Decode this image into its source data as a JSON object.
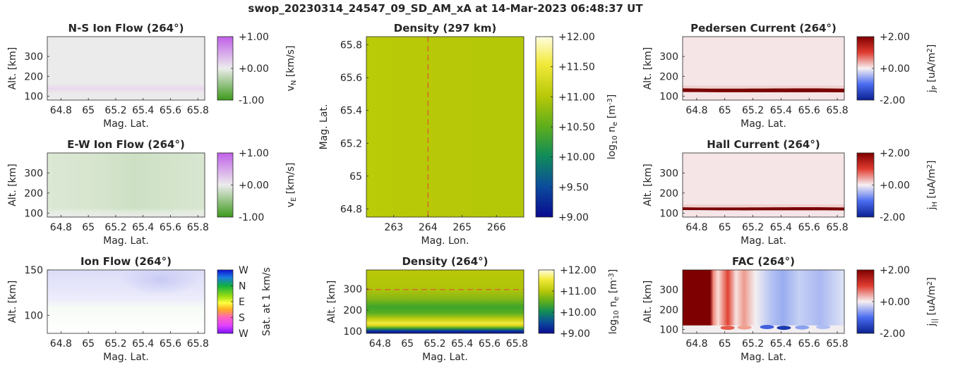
{
  "suptitle": "swop_20230314_24547_09_SD_AM_xA at 14-Mar-2023 06:48:37 UT",
  "colors": {
    "density_field": "#b9c907",
    "current_bg": "#f5e5e7",
    "current_band": "#7a0000",
    "flow_ns": "#e5dde8",
    "flow_ew": "#d4e4cc"
  },
  "chart_data": [
    {
      "id": "ns-flow",
      "type": "heatmap",
      "title": "N-S Ion Flow (264°)",
      "xlabel": "Mag. Lat.",
      "ylabel": "Alt. [km]",
      "xticks": [
        "64.8",
        "65",
        "65.2",
        "65.4",
        "65.6",
        "65.8"
      ],
      "yticks": [
        "100",
        "200",
        "300"
      ],
      "xlim": [
        64.7,
        65.85
      ],
      "ylim": [
        80,
        400
      ],
      "colorbar": {
        "label": "v_N [km/s]",
        "ticks": [
          "+1.00",
          "+0.00",
          "-1.00"
        ],
        "range": [
          -1,
          1
        ],
        "scheme": "purple-green"
      }
    },
    {
      "id": "ew-flow",
      "type": "heatmap",
      "title": "E-W Ion Flow (264°)",
      "xlabel": "Mag. Lat.",
      "ylabel": "Alt. [km]",
      "xticks": [
        "64.8",
        "65",
        "65.2",
        "65.4",
        "65.6",
        "65.8"
      ],
      "yticks": [
        "100",
        "200",
        "300"
      ],
      "xlim": [
        64.7,
        65.85
      ],
      "ylim": [
        80,
        400
      ],
      "colorbar": {
        "label": "v_E [km/s]",
        "ticks": [
          "+1.00",
          "+0.00",
          "-1.00"
        ],
        "range": [
          -1,
          1
        ],
        "scheme": "purple-green"
      }
    },
    {
      "id": "ion-flow",
      "type": "heatmap",
      "title": "Ion Flow (264°)",
      "xlabel": "Mag. Lat.",
      "ylabel": "Alt. [km]",
      "xticks": [
        "64.8",
        "65",
        "65.2",
        "65.4",
        "65.6",
        "65.8"
      ],
      "yticks": [
        "100",
        "150"
      ],
      "xlim": [
        64.7,
        65.85
      ],
      "ylim": [
        80,
        150
      ],
      "colorbar": {
        "label": "Sat. at 1 km/s",
        "ticks": [
          "W",
          "N",
          "E",
          "S",
          "W"
        ],
        "scheme": "direction"
      }
    },
    {
      "id": "density-map",
      "type": "heatmap",
      "title": "Density (297 km)",
      "xlabel": "Mag. Lon.",
      "ylabel": "Mag. Lat.",
      "xticks": [
        "263",
        "264",
        "265",
        "266"
      ],
      "yticks": [
        "64.8",
        "65",
        "65.2",
        "65.4",
        "65.6",
        "65.8"
      ],
      "xlim": [
        262.2,
        266.8
      ],
      "ylim": [
        64.75,
        65.85
      ],
      "marker_line": {
        "x": 264
      },
      "colorbar": {
        "label": "log10 n_e [m^-3]",
        "ticks": [
          "+12.00",
          "+11.50",
          "+11.00",
          "+10.50",
          "+10.00",
          "+9.50",
          "+9.00"
        ],
        "range": [
          9,
          12
        ],
        "scheme": "density"
      }
    },
    {
      "id": "density-profile",
      "type": "heatmap",
      "title": "Density (264°)",
      "xlabel": "Mag. Lat.",
      "ylabel": "Alt. [km]",
      "xticks": [
        "64.8",
        "65",
        "65.2",
        "65.4",
        "65.6",
        "65.8"
      ],
      "yticks": [
        "100",
        "200",
        "300"
      ],
      "xlim": [
        64.7,
        65.85
      ],
      "ylim": [
        90,
        390
      ],
      "marker_line": {
        "y": 297
      },
      "colorbar": {
        "label": "log10 n_e [m^-3]",
        "ticks": [
          "+12.00",
          "+11.00",
          "+10.00",
          "+9.00"
        ],
        "range": [
          9,
          12
        ],
        "scheme": "density"
      }
    },
    {
      "id": "pedersen",
      "type": "heatmap",
      "title": "Pedersen Current (264°)",
      "xlabel": "Mag. Lat.",
      "ylabel": "Alt. [km]",
      "xticks": [
        "64.8",
        "65",
        "65.2",
        "65.4",
        "65.6",
        "65.8"
      ],
      "yticks": [
        "100",
        "200",
        "300"
      ],
      "xlim": [
        64.7,
        65.85
      ],
      "ylim": [
        80,
        400
      ],
      "colorbar": {
        "label": "j_P [uA/m^2]",
        "ticks": [
          "+2.00",
          "+0.00",
          "-2.00"
        ],
        "range": [
          -2,
          2
        ],
        "scheme": "red-blue"
      }
    },
    {
      "id": "hall",
      "type": "heatmap",
      "title": "Hall Current (264°)",
      "xlabel": "Mag. Lat.",
      "ylabel": "Alt. [km]",
      "xticks": [
        "64.8",
        "65",
        "65.2",
        "65.4",
        "65.6",
        "65.8"
      ],
      "yticks": [
        "100",
        "200",
        "300"
      ],
      "xlim": [
        64.7,
        65.85
      ],
      "ylim": [
        80,
        400
      ],
      "colorbar": {
        "label": "j_H [uA/m^2]",
        "ticks": [
          "+2.00",
          "+0.00",
          "-2.00"
        ],
        "range": [
          -2,
          2
        ],
        "scheme": "red-blue"
      }
    },
    {
      "id": "fac",
      "type": "heatmap",
      "title": "FAC (264°)",
      "xlabel": "Mag. Lat.",
      "ylabel": "Alt. [km]",
      "xticks": [
        "64.8",
        "65",
        "65.2",
        "65.4",
        "65.6",
        "65.8"
      ],
      "yticks": [
        "100",
        "200",
        "300"
      ],
      "xlim": [
        64.7,
        65.85
      ],
      "ylim": [
        80,
        400
      ],
      "colorbar": {
        "label": "j_|| [uA/m^2]",
        "ticks": [
          "+2.00",
          "+0.00",
          "-2.00"
        ],
        "range": [
          -2,
          2
        ],
        "scheme": "red-blue"
      }
    }
  ]
}
